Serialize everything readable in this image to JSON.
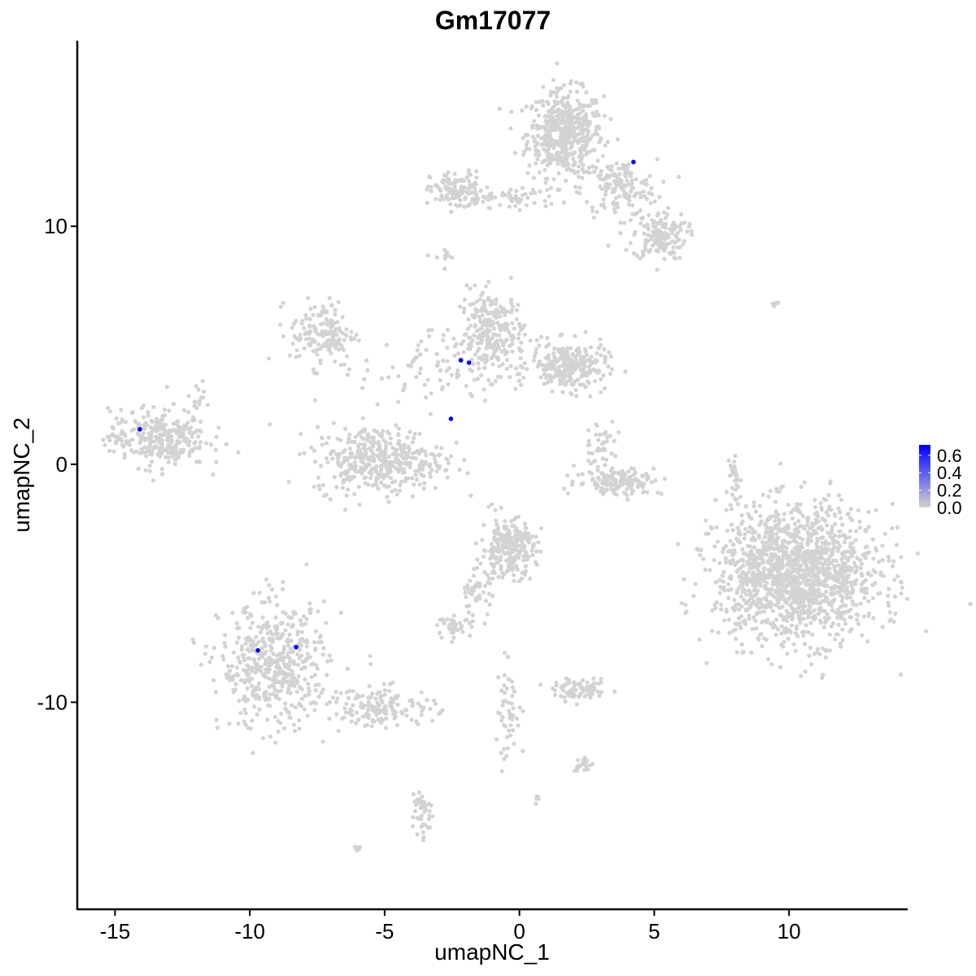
{
  "chart_data": {
    "type": "scatter",
    "title": "Gm17077",
    "xlabel": "umapNC_1",
    "ylabel": "umapNC_2",
    "xlim": [
      -16.4,
      14.4
    ],
    "ylim": [
      -18.7,
      17.8
    ],
    "xticks": [
      -15,
      -10,
      -5,
      0,
      5,
      10
    ],
    "yticks": [
      -10,
      0,
      10
    ],
    "grid": false,
    "colors": {
      "low": "#d3d3d3",
      "high": "#0000ff"
    },
    "legend": {
      "placement": "right",
      "ticks": [
        "0.0",
        "0.2",
        "0.4",
        "0.6"
      ],
      "range": [
        0,
        0.72
      ]
    },
    "expressing_points": [
      {
        "x": 4.23,
        "y": 12.7,
        "value": 0.72
      },
      {
        "x": -2.17,
        "y": 4.37,
        "value": 0.72
      },
      {
        "x": -1.87,
        "y": 4.27,
        "value": 0.72
      },
      {
        "x": -2.54,
        "y": 1.91,
        "value": 0.72
      },
      {
        "x": -14.08,
        "y": 1.47,
        "value": 0.72
      },
      {
        "x": -9.7,
        "y": -7.82,
        "value": 0.72
      },
      {
        "x": -8.28,
        "y": -7.68,
        "value": 0.72
      }
    ],
    "background_clusters": [
      {
        "cx": 1.7,
        "cy": 13.9,
        "sx": 0.7,
        "sy": 0.9,
        "n": 500
      },
      {
        "cx": 3.7,
        "cy": 11.6,
        "sx": 0.7,
        "sy": 0.6,
        "n": 150
      },
      {
        "cx": 5.2,
        "cy": 9.6,
        "sx": 0.5,
        "sy": 0.5,
        "n": 150
      },
      {
        "cx": -2.3,
        "cy": 11.5,
        "sx": 0.5,
        "sy": 0.4,
        "n": 120
      },
      {
        "cx": -0.5,
        "cy": 11.2,
        "sx": 1.0,
        "sy": 0.2,
        "n": 60
      },
      {
        "cx": -2.8,
        "cy": 8.7,
        "sx": 0.2,
        "sy": 0.2,
        "n": 10
      },
      {
        "cx": -1.0,
        "cy": 5.5,
        "sx": 0.6,
        "sy": 0.9,
        "n": 250
      },
      {
        "cx": 1.85,
        "cy": 4.1,
        "sx": 0.7,
        "sy": 0.5,
        "n": 250
      },
      {
        "cx": -3.5,
        "cy": 4.0,
        "sx": 1.2,
        "sy": 0.8,
        "n": 80
      },
      {
        "cx": -7.3,
        "cy": 5.5,
        "sx": 0.6,
        "sy": 0.7,
        "n": 150
      },
      {
        "cx": -5.2,
        "cy": 0.2,
        "sx": 1.2,
        "sy": 0.7,
        "n": 400
      },
      {
        "cx": -13.4,
        "cy": 1.1,
        "sx": 0.9,
        "sy": 0.6,
        "n": 300
      },
      {
        "cx": 10.3,
        "cy": -4.6,
        "sx": 1.5,
        "sy": 1.4,
        "n": 1500
      },
      {
        "cx": -0.4,
        "cy": -3.5,
        "sx": 0.5,
        "sy": 0.6,
        "n": 250
      },
      {
        "cx": -1.6,
        "cy": -5.4,
        "sx": 0.3,
        "sy": 0.5,
        "n": 50
      },
      {
        "cx": -2.4,
        "cy": -6.8,
        "sx": 0.3,
        "sy": 0.2,
        "n": 40
      },
      {
        "cx": 3.7,
        "cy": -0.7,
        "sx": 0.8,
        "sy": 0.3,
        "n": 150
      },
      {
        "cx": 3.05,
        "cy": 0.9,
        "sx": 0.3,
        "sy": 0.5,
        "n": 40
      },
      {
        "cx": -9.1,
        "cy": -8.5,
        "sx": 1.0,
        "sy": 1.3,
        "n": 500
      },
      {
        "cx": -5.1,
        "cy": -10.2,
        "sx": 1.0,
        "sy": 0.4,
        "n": 150
      },
      {
        "cx": -3.6,
        "cy": -14.6,
        "sx": 0.2,
        "sy": 0.6,
        "n": 40
      },
      {
        "cx": 2.3,
        "cy": -9.5,
        "sx": 0.5,
        "sy": 0.2,
        "n": 80
      },
      {
        "cx": -0.4,
        "cy": -10.5,
        "sx": 0.3,
        "sy": 1.0,
        "n": 50
      },
      {
        "cx": 2.3,
        "cy": -12.6,
        "sx": 0.2,
        "sy": 0.2,
        "n": 20
      },
      {
        "cx": 8.0,
        "cy": -0.6,
        "sx": 0.1,
        "sy": 0.6,
        "n": 30
      },
      {
        "cx": 9.4,
        "cy": 6.7,
        "sx": 0.1,
        "sy": 0.05,
        "n": 5
      },
      {
        "cx": -12.0,
        "cy": 2.8,
        "sx": 0.2,
        "sy": 0.3,
        "n": 15
      },
      {
        "cx": -6.0,
        "cy": -16.1,
        "sx": 0.1,
        "sy": 0.1,
        "n": 6
      },
      {
        "cx": 0.6,
        "cy": -14.1,
        "sx": 0.1,
        "sy": 0.1,
        "n": 5
      }
    ]
  }
}
